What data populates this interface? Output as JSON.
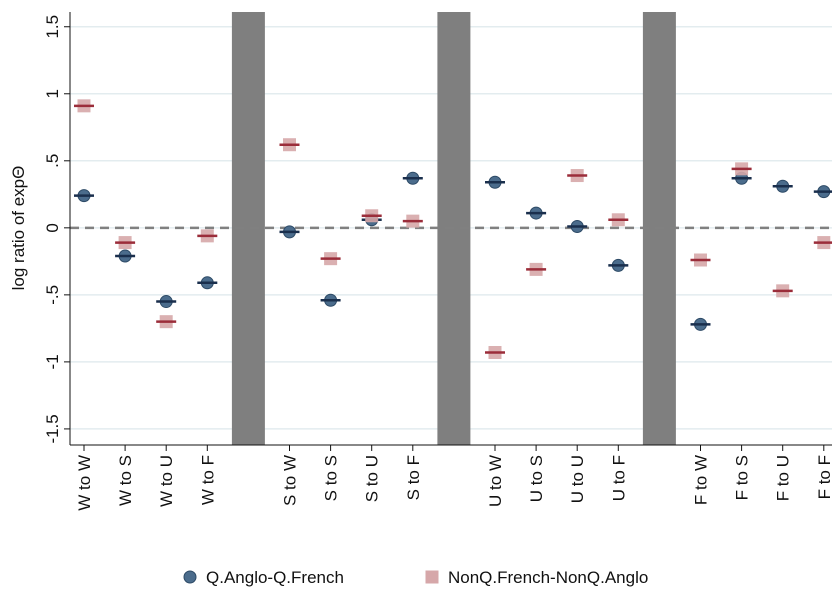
{
  "chart_data": {
    "type": "dot",
    "y_label": "log ratio of expΘ",
    "categories": [
      "W to W",
      "W to S",
      "W to U",
      "W to F",
      null,
      "S to W",
      "S to S",
      "S to U",
      "S to F",
      null,
      "U to W",
      "U to S",
      "U to U",
      "U to F",
      null,
      "F to W",
      "F to S",
      "F to U",
      "F to F"
    ],
    "series": [
      {
        "name": "Q.Anglo-Q.French",
        "color": "#4b6c8c",
        "line_color": "#1a2f4d",
        "marker": "circle",
        "values": [
          0.24,
          -0.21,
          -0.55,
          -0.41,
          null,
          -0.03,
          -0.54,
          0.06,
          0.37,
          null,
          0.34,
          0.11,
          0.01,
          -0.28,
          null,
          -0.72,
          0.37,
          0.31,
          0.27
        ]
      },
      {
        "name": "NonQ.French-NonQ.Anglo",
        "color": "#d6a7a9",
        "line_color": "#9b2d3a",
        "marker": "square",
        "values": [
          0.91,
          -0.11,
          -0.7,
          -0.06,
          null,
          0.62,
          -0.23,
          0.09,
          0.05,
          null,
          -0.93,
          -0.31,
          0.39,
          0.06,
          null,
          -0.24,
          0.44,
          -0.47,
          -0.11
        ]
      }
    ],
    "ylim": [
      -1.62,
      1.61
    ],
    "yticks": [
      -1.5,
      -1,
      {
        "value": -0.5,
        "label": "-.5"
      },
      0,
      {
        "value": 0.5,
        "label": ".5"
      },
      1,
      1.5
    ],
    "reference_line": 0,
    "grid": true,
    "legend": "bottom"
  }
}
